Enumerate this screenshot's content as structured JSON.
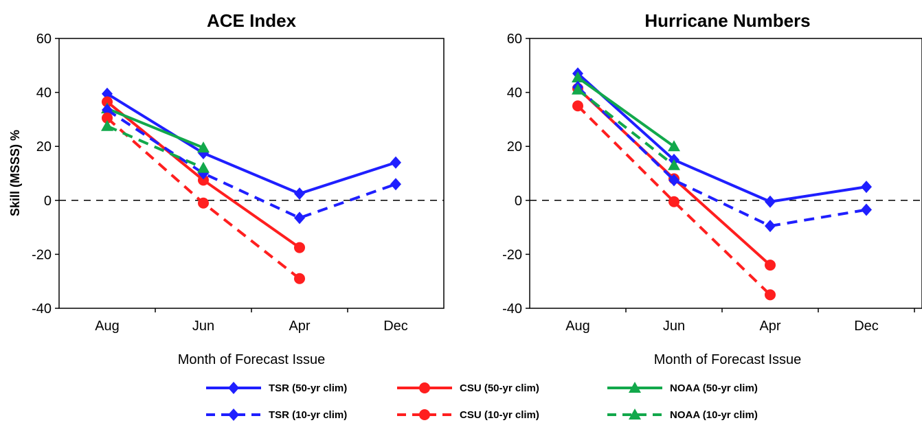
{
  "chart_data": [
    {
      "type": "line",
      "title": "ACE Index",
      "xlabel": "Month of Forecast Issue",
      "ylabel": "Skill (MSSS) %",
      "categories": [
        "Aug",
        "Jun",
        "Apr",
        "Dec"
      ],
      "ylim": [
        -40,
        60
      ],
      "yticks": [
        -40,
        -20,
        0,
        20,
        40,
        60
      ],
      "reference_line": 0,
      "grid": false,
      "series": [
        {
          "name": "TSR (50-yr clim)",
          "color": "#1f1fff",
          "dash": "solid",
          "marker": "diamond",
          "values": [
            39.5,
            17.5,
            2.5,
            14
          ]
        },
        {
          "name": "CSU (50-yr clim)",
          "color": "#ff1f1f",
          "dash": "solid",
          "marker": "circle",
          "values": [
            36.5,
            7.5,
            -17.5,
            null
          ]
        },
        {
          "name": "NOAA (50-yr clim)",
          "color": "#12a84b",
          "dash": "solid",
          "marker": "triangle",
          "values": [
            34,
            19.5,
            null,
            null
          ]
        },
        {
          "name": "TSR (10-yr clim)",
          "color": "#1f1fff",
          "dash": "dashed",
          "marker": "diamond",
          "values": [
            33.5,
            10,
            -6.5,
            6
          ]
        },
        {
          "name": "CSU (10-yr clim)",
          "color": "#ff1f1f",
          "dash": "dashed",
          "marker": "circle",
          "values": [
            30.5,
            -1,
            -29,
            null
          ]
        },
        {
          "name": "NOAA (10-yr clim)",
          "color": "#12a84b",
          "dash": "dashed",
          "marker": "triangle",
          "values": [
            27.5,
            12,
            null,
            null
          ]
        }
      ]
    },
    {
      "type": "line",
      "title": "Hurricane Numbers",
      "xlabel": "Month of Forecast Issue",
      "ylabel": "",
      "categories": [
        "Aug",
        "Jun",
        "Apr",
        "Dec"
      ],
      "ylim": [
        -40,
        60
      ],
      "yticks": [
        -40,
        -20,
        0,
        20,
        40,
        60
      ],
      "reference_line": 0,
      "grid": false,
      "series": [
        {
          "name": "TSR (50-yr clim)",
          "color": "#1f1fff",
          "dash": "solid",
          "marker": "diamond",
          "values": [
            47,
            15,
            -0.5,
            5
          ]
        },
        {
          "name": "CSU (50-yr clim)",
          "color": "#ff1f1f",
          "dash": "solid",
          "marker": "circle",
          "values": [
            41.5,
            8,
            -24,
            null
          ]
        },
        {
          "name": "NOAA (50-yr clim)",
          "color": "#12a84b",
          "dash": "solid",
          "marker": "triangle",
          "values": [
            45.5,
            20,
            null,
            null
          ]
        },
        {
          "name": "TSR (10-yr clim)",
          "color": "#1f1fff",
          "dash": "dashed",
          "marker": "diamond",
          "values": [
            42,
            7.5,
            -9.5,
            -3.5
          ]
        },
        {
          "name": "CSU (10-yr clim)",
          "color": "#ff1f1f",
          "dash": "dashed",
          "marker": "circle",
          "values": [
            35,
            -0.5,
            -35,
            null
          ]
        },
        {
          "name": "NOAA (10-yr clim)",
          "color": "#12a84b",
          "dash": "dashed",
          "marker": "triangle",
          "values": [
            41,
            13,
            null,
            null
          ]
        }
      ]
    }
  ],
  "legend": {
    "placement": "bottom",
    "entries": [
      {
        "label": "TSR (50-yr clim)",
        "color": "#1f1fff",
        "dash": "solid",
        "marker": "diamond"
      },
      {
        "label": "CSU (50-yr clim)",
        "color": "#ff1f1f",
        "dash": "solid",
        "marker": "circle"
      },
      {
        "label": "NOAA (50-yr clim)",
        "color": "#12a84b",
        "dash": "solid",
        "marker": "triangle"
      },
      {
        "label": "TSR (10-yr clim)",
        "color": "#1f1fff",
        "dash": "dashed",
        "marker": "diamond"
      },
      {
        "label": "CSU (10-yr clim)",
        "color": "#ff1f1f",
        "dash": "dashed",
        "marker": "circle"
      },
      {
        "label": "NOAA (10-yr clim)",
        "color": "#12a84b",
        "dash": "dashed",
        "marker": "triangle"
      }
    ]
  }
}
